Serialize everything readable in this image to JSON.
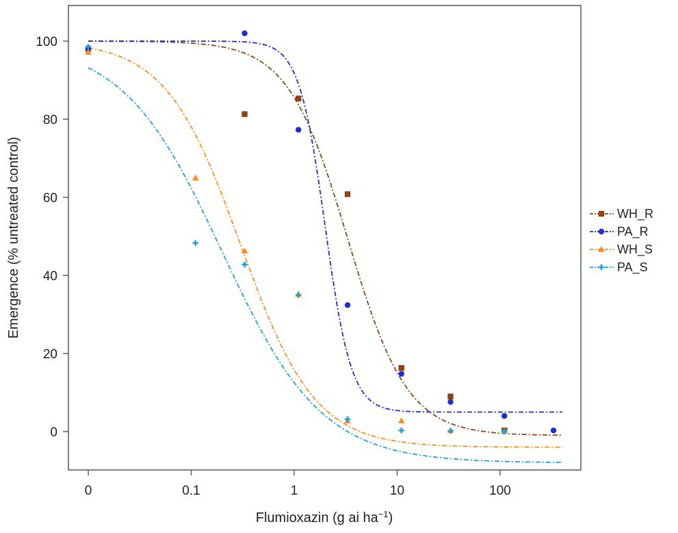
{
  "chart_data": {
    "type": "scatter",
    "title": "",
    "xlabel": "Flumioxazin (g ai ha",
    "xlabel_sup": "−1",
    "xlabel_close": ")",
    "ylabel": "Emergence (% untreated control)",
    "xscale": "log",
    "x_zero_label": "0",
    "xticks": [
      {
        "value": 0.1,
        "label": "0.1"
      },
      {
        "value": 1,
        "label": "1"
      },
      {
        "value": 10,
        "label": "10"
      },
      {
        "value": 100,
        "label": "100"
      }
    ],
    "yticks": [
      0,
      20,
      40,
      60,
      80,
      100
    ],
    "ylim": [
      -10,
      110
    ],
    "legend": {
      "position": "right"
    },
    "series": [
      {
        "name": "WH_R",
        "color": "#8b4513",
        "marker": "square",
        "points": [
          [
            0,
            98
          ],
          [
            0.33,
            81.3
          ],
          [
            1.1,
            85.3
          ],
          [
            3.3,
            60.8
          ],
          [
            11,
            16.3
          ],
          [
            33,
            9.0
          ],
          [
            110,
            0.3
          ]
        ],
        "curve": {
          "lower": -1,
          "upper": 100,
          "ed50": 3.3,
          "slope": 1.5
        }
      },
      {
        "name": "PA_R",
        "color": "#1f2bd6",
        "marker": "circle",
        "points": [
          [
            0,
            98.2
          ],
          [
            0.33,
            102
          ],
          [
            1.1,
            77.3
          ],
          [
            3.3,
            32.4
          ],
          [
            11,
            14.8
          ],
          [
            33,
            7.6
          ],
          [
            110,
            4.0
          ],
          [
            330,
            0.3
          ]
        ],
        "curve": {
          "lower": 5,
          "upper": 100,
          "ed50": 2.0,
          "slope": 3.4
        }
      },
      {
        "name": "WH_S",
        "color": "#ff8c1a",
        "marker": "triangle",
        "points": [
          [
            0,
            97.2
          ],
          [
            0.11,
            65
          ],
          [
            0.33,
            46.3
          ],
          [
            1.1,
            35.2
          ],
          [
            3.3,
            2.8
          ],
          [
            11,
            2.8
          ],
          [
            33,
            0.3
          ],
          [
            110,
            0.2
          ]
        ],
        "curve": {
          "lower": -4,
          "upper": 100,
          "ed50": 0.3,
          "slope": 1.2
        }
      },
      {
        "name": "PA_S",
        "color": "#1aa3d9",
        "marker": "plus",
        "points": [
          [
            0,
            98.5
          ],
          [
            0.11,
            48.3
          ],
          [
            0.33,
            42.8
          ],
          [
            1.1,
            35
          ],
          [
            3.3,
            3.2
          ],
          [
            11,
            0.3
          ],
          [
            33,
            0.2
          ],
          [
            110,
            0.1
          ]
        ],
        "curve": {
          "lower": -8,
          "upper": 100,
          "ed50": 0.2,
          "slope": 0.9
        }
      }
    ]
  }
}
